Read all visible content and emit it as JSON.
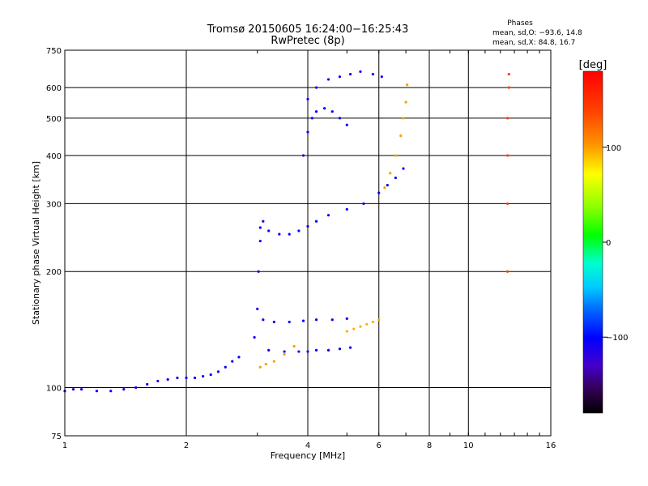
{
  "chart_data": {
    "type": "scatter",
    "title": "Tromsø 20150605 16:24:00−16:25:43",
    "subtitle": "RwPretec (8p)",
    "xlabel": "Frequency [MHz]",
    "ylabel": "Stationary phase Virtual Height [km]",
    "x_scale": "log",
    "y_scale": "log",
    "xlim": [
      1,
      16
    ],
    "ylim": [
      75,
      750
    ],
    "x_ticks": [
      1,
      2,
      4,
      6,
      8,
      10,
      16
    ],
    "x_tick_labels": [
      "1",
      "2",
      "4",
      "6",
      "8",
      "10",
      "16"
    ],
    "y_ticks": [
      75,
      100,
      200,
      300,
      400,
      500,
      600,
      750
    ],
    "y_tick_labels": [
      "75",
      "100",
      "200",
      "300",
      "400",
      "500",
      "600",
      "750"
    ],
    "grid": true,
    "phase_stats": {
      "title": "Phases",
      "line_o": "mean, sd,O: −93.6, 14.8",
      "line_x": "mean, sd,X:  84.8, 16.7"
    },
    "colorbar": {
      "label": "[deg]",
      "range": [
        -180,
        180
      ],
      "ticks": [
        100,
        0,
        -100
      ],
      "tick_labels": [
        "100",
        "0",
        "−100"
      ]
    },
    "traces": [
      {
        "x": [
          1.0,
          1.05,
          1.1,
          1.2,
          1.3,
          1.4,
          1.5,
          1.6,
          1.7,
          1.8,
          1.9,
          2.0,
          2.1,
          2.2,
          2.3,
          2.4,
          2.5,
          2.6,
          2.7
        ],
        "y": [
          98,
          99,
          99,
          98,
          98,
          99,
          100,
          102,
          104,
          105,
          106,
          106,
          106,
          107,
          108,
          110,
          113,
          117,
          120
        ],
        "phase": -105
      },
      {
        "x": [
          2.95,
          3.0,
          3.02,
          3.05,
          3.1
        ],
        "y": [
          135,
          160,
          200,
          240,
          270
        ],
        "phase": -110
      },
      {
        "x": [
          3.05,
          3.2,
          3.4,
          3.6,
          3.8,
          4.0,
          4.2,
          4.5,
          5.0,
          5.5,
          6.0,
          6.3,
          6.6,
          6.9
        ],
        "y": [
          260,
          255,
          250,
          250,
          255,
          262,
          270,
          280,
          290,
          300,
          320,
          335,
          350,
          370
        ],
        "phase": -100
      },
      {
        "x": [
          3.2,
          3.5,
          3.8,
          4.0,
          4.2,
          4.5,
          4.8,
          5.1
        ],
        "y": [
          125,
          124,
          124,
          124,
          125,
          125,
          126,
          127
        ],
        "phase": -105
      },
      {
        "x": [
          3.1,
          3.3,
          3.6,
          3.9,
          4.2,
          4.6,
          5.0
        ],
        "y": [
          150,
          148,
          148,
          149,
          150,
          150,
          151
        ],
        "phase": -100
      },
      {
        "x": [
          3.05,
          3.15,
          3.3,
          3.5,
          3.7
        ],
        "y": [
          113,
          115,
          117,
          122,
          128
        ],
        "phase": 100
      },
      {
        "x": [
          3.9,
          4.0,
          4.1,
          4.2,
          4.4,
          4.6,
          4.8,
          5.0
        ],
        "y": [
          400,
          460,
          500,
          520,
          530,
          520,
          500,
          480
        ],
        "phase": -100
      },
      {
        "x": [
          4.0,
          4.2,
          4.5,
          4.8,
          5.1,
          5.4,
          5.8,
          6.1
        ],
        "y": [
          560,
          600,
          630,
          640,
          650,
          660,
          650,
          640
        ],
        "phase": -110
      },
      {
        "x": [
          6.2,
          6.4,
          6.6,
          6.8,
          6.9,
          7.0,
          7.05
        ],
        "y": [
          330,
          360,
          400,
          450,
          500,
          550,
          610
        ],
        "phase": 100
      },
      {
        "x": [
          5.0,
          5.2,
          5.4,
          5.6,
          5.8,
          6.0
        ],
        "y": [
          140,
          142,
          144,
          146,
          148,
          150
        ],
        "phase": 95
      },
      {
        "x": [
          12.5,
          12.5,
          12.5,
          12.5,
          12.6,
          12.6
        ],
        "y": [
          200,
          300,
          400,
          500,
          600,
          650
        ],
        "phase": 140
      }
    ]
  }
}
